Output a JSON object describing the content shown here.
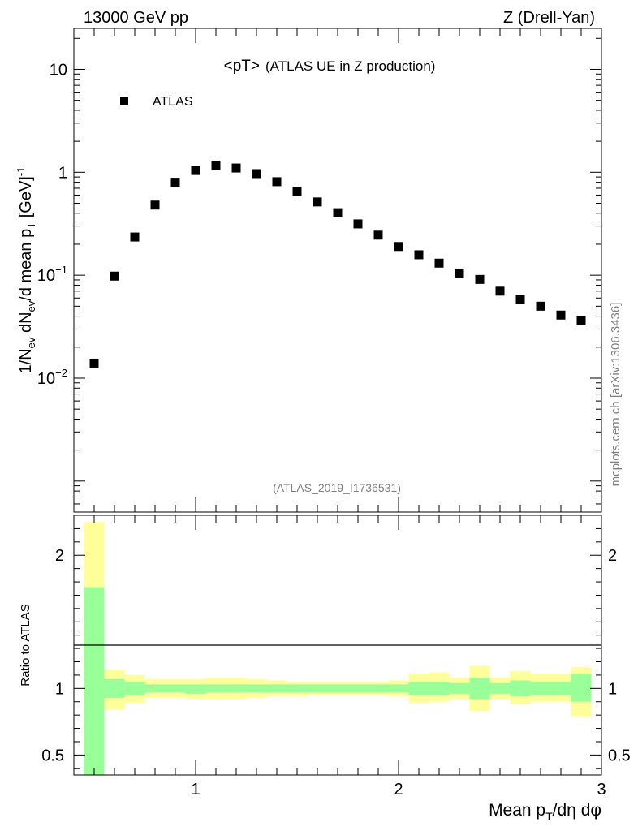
{
  "header": {
    "left": "13000 GeV pp",
    "right": "Z (Drell-Yan)"
  },
  "side_label": "mcplots.cern.ch [arXiv:1306.3436]",
  "chart_data": [
    {
      "type": "scatter",
      "panel": "main",
      "title_main": "<pT>",
      "title_sub": "(ATLAS UE in Z production)",
      "analysis_id": "(ATLAS_2019_I1736531)",
      "ylabel": "1/N_ev dN_ev/d mean p_T [GeV]^-1",
      "yscale": "log",
      "ylim": [
        0.0005,
        25
      ],
      "xlim": [
        0.4,
        3.0
      ],
      "y_tick_labels": [
        "10^-2",
        "10^-1",
        "1",
        "10"
      ],
      "legend": {
        "position": "top-left",
        "entries": [
          "ATLAS"
        ]
      },
      "series": [
        {
          "name": "ATLAS",
          "marker": "square",
          "color": "#000000",
          "x": [
            0.5,
            0.6,
            0.7,
            0.8,
            0.9,
            1.0,
            1.1,
            1.2,
            1.3,
            1.4,
            1.5,
            1.6,
            1.7,
            1.8,
            1.9,
            2.0,
            2.1,
            2.2,
            2.3,
            2.4,
            2.5,
            2.6,
            2.7,
            2.8,
            2.9
          ],
          "y": [
            0.014,
            0.098,
            0.235,
            0.48,
            0.8,
            1.04,
            1.17,
            1.1,
            0.97,
            0.81,
            0.65,
            0.515,
            0.405,
            0.315,
            0.245,
            0.19,
            0.158,
            0.131,
            0.105,
            0.091,
            0.07,
            0.058,
            0.05,
            0.041,
            0.036
          ]
        }
      ]
    },
    {
      "type": "area",
      "panel": "ratio",
      "ylabel": "Ratio to ATLAS",
      "xlabel": "Mean p_T/dη dφ",
      "ylim": [
        0.35,
        2.3
      ],
      "xlim": [
        0.4,
        3.0
      ],
      "x_tick_labels": [
        "1",
        "2",
        "3"
      ],
      "y_tick_labels": [
        "0.5",
        "1",
        "2"
      ],
      "reference_line": 1.0,
      "bins": [
        {
          "lo": 0.45,
          "hi": 0.55,
          "stat_lo": 0.2,
          "stat_hi": 1.76,
          "tot_lo": 0.2,
          "tot_hi": 2.25
        },
        {
          "lo": 0.55,
          "hi": 0.65,
          "stat_lo": 0.93,
          "stat_hi": 1.07,
          "tot_lo": 0.84,
          "tot_hi": 1.14
        },
        {
          "lo": 0.65,
          "hi": 0.75,
          "stat_lo": 0.95,
          "stat_hi": 1.05,
          "tot_lo": 0.89,
          "tot_hi": 1.1
        },
        {
          "lo": 0.75,
          "hi": 0.85,
          "stat_lo": 0.97,
          "stat_hi": 1.03,
          "tot_lo": 0.93,
          "tot_hi": 1.07
        },
        {
          "lo": 0.85,
          "hi": 0.95,
          "stat_lo": 0.97,
          "stat_hi": 1.03,
          "tot_lo": 0.93,
          "tot_hi": 1.07
        },
        {
          "lo": 0.95,
          "hi": 1.05,
          "stat_lo": 0.96,
          "stat_hi": 1.03,
          "tot_lo": 0.92,
          "tot_hi": 1.07
        },
        {
          "lo": 1.05,
          "hi": 1.15,
          "stat_lo": 0.97,
          "stat_hi": 1.03,
          "tot_lo": 0.92,
          "tot_hi": 1.08
        },
        {
          "lo": 1.15,
          "hi": 1.25,
          "stat_lo": 0.97,
          "stat_hi": 1.03,
          "tot_lo": 0.92,
          "tot_hi": 1.08
        },
        {
          "lo": 1.25,
          "hi": 1.35,
          "stat_lo": 0.97,
          "stat_hi": 1.03,
          "tot_lo": 0.93,
          "tot_hi": 1.07
        },
        {
          "lo": 1.35,
          "hi": 1.45,
          "stat_lo": 0.97,
          "stat_hi": 1.03,
          "tot_lo": 0.94,
          "tot_hi": 1.06
        },
        {
          "lo": 1.45,
          "hi": 1.55,
          "stat_lo": 0.97,
          "stat_hi": 1.03,
          "tot_lo": 0.94,
          "tot_hi": 1.05
        },
        {
          "lo": 1.55,
          "hi": 1.65,
          "stat_lo": 0.97,
          "stat_hi": 1.03,
          "tot_lo": 0.95,
          "tot_hi": 1.05
        },
        {
          "lo": 1.65,
          "hi": 1.75,
          "stat_lo": 0.97,
          "stat_hi": 1.03,
          "tot_lo": 0.95,
          "tot_hi": 1.05
        },
        {
          "lo": 1.75,
          "hi": 1.85,
          "stat_lo": 0.97,
          "stat_hi": 1.03,
          "tot_lo": 0.95,
          "tot_hi": 1.05
        },
        {
          "lo": 1.85,
          "hi": 1.95,
          "stat_lo": 0.97,
          "stat_hi": 1.03,
          "tot_lo": 0.95,
          "tot_hi": 1.05
        },
        {
          "lo": 1.95,
          "hi": 2.05,
          "stat_lo": 0.97,
          "stat_hi": 1.03,
          "tot_lo": 0.94,
          "tot_hi": 1.06
        },
        {
          "lo": 2.05,
          "hi": 2.15,
          "stat_lo": 0.95,
          "stat_hi": 1.05,
          "tot_lo": 0.89,
          "tot_hi": 1.11
        },
        {
          "lo": 2.15,
          "hi": 2.25,
          "stat_lo": 0.95,
          "stat_hi": 1.05,
          "tot_lo": 0.9,
          "tot_hi": 1.12
        },
        {
          "lo": 2.25,
          "hi": 2.35,
          "stat_lo": 0.96,
          "stat_hi": 1.04,
          "tot_lo": 0.92,
          "tot_hi": 1.08
        },
        {
          "lo": 2.35,
          "hi": 2.45,
          "stat_lo": 0.92,
          "stat_hi": 1.08,
          "tot_lo": 0.83,
          "tot_hi": 1.17
        },
        {
          "lo": 2.45,
          "hi": 2.55,
          "stat_lo": 0.96,
          "stat_hi": 1.04,
          "tot_lo": 0.92,
          "tot_hi": 1.08
        },
        {
          "lo": 2.55,
          "hi": 2.65,
          "stat_lo": 0.94,
          "stat_hi": 1.06,
          "tot_lo": 0.88,
          "tot_hi": 1.13
        },
        {
          "lo": 2.65,
          "hi": 2.75,
          "stat_lo": 0.95,
          "stat_hi": 1.05,
          "tot_lo": 0.9,
          "tot_hi": 1.11
        },
        {
          "lo": 2.75,
          "hi": 2.85,
          "stat_lo": 0.95,
          "stat_hi": 1.05,
          "tot_lo": 0.9,
          "tot_hi": 1.11
        },
        {
          "lo": 2.85,
          "hi": 2.95,
          "stat_lo": 0.9,
          "stat_hi": 1.11,
          "tot_lo": 0.79,
          "tot_hi": 1.16
        }
      ],
      "colors": {
        "stat": "#99ff99",
        "total": "#ffff99"
      }
    }
  ]
}
